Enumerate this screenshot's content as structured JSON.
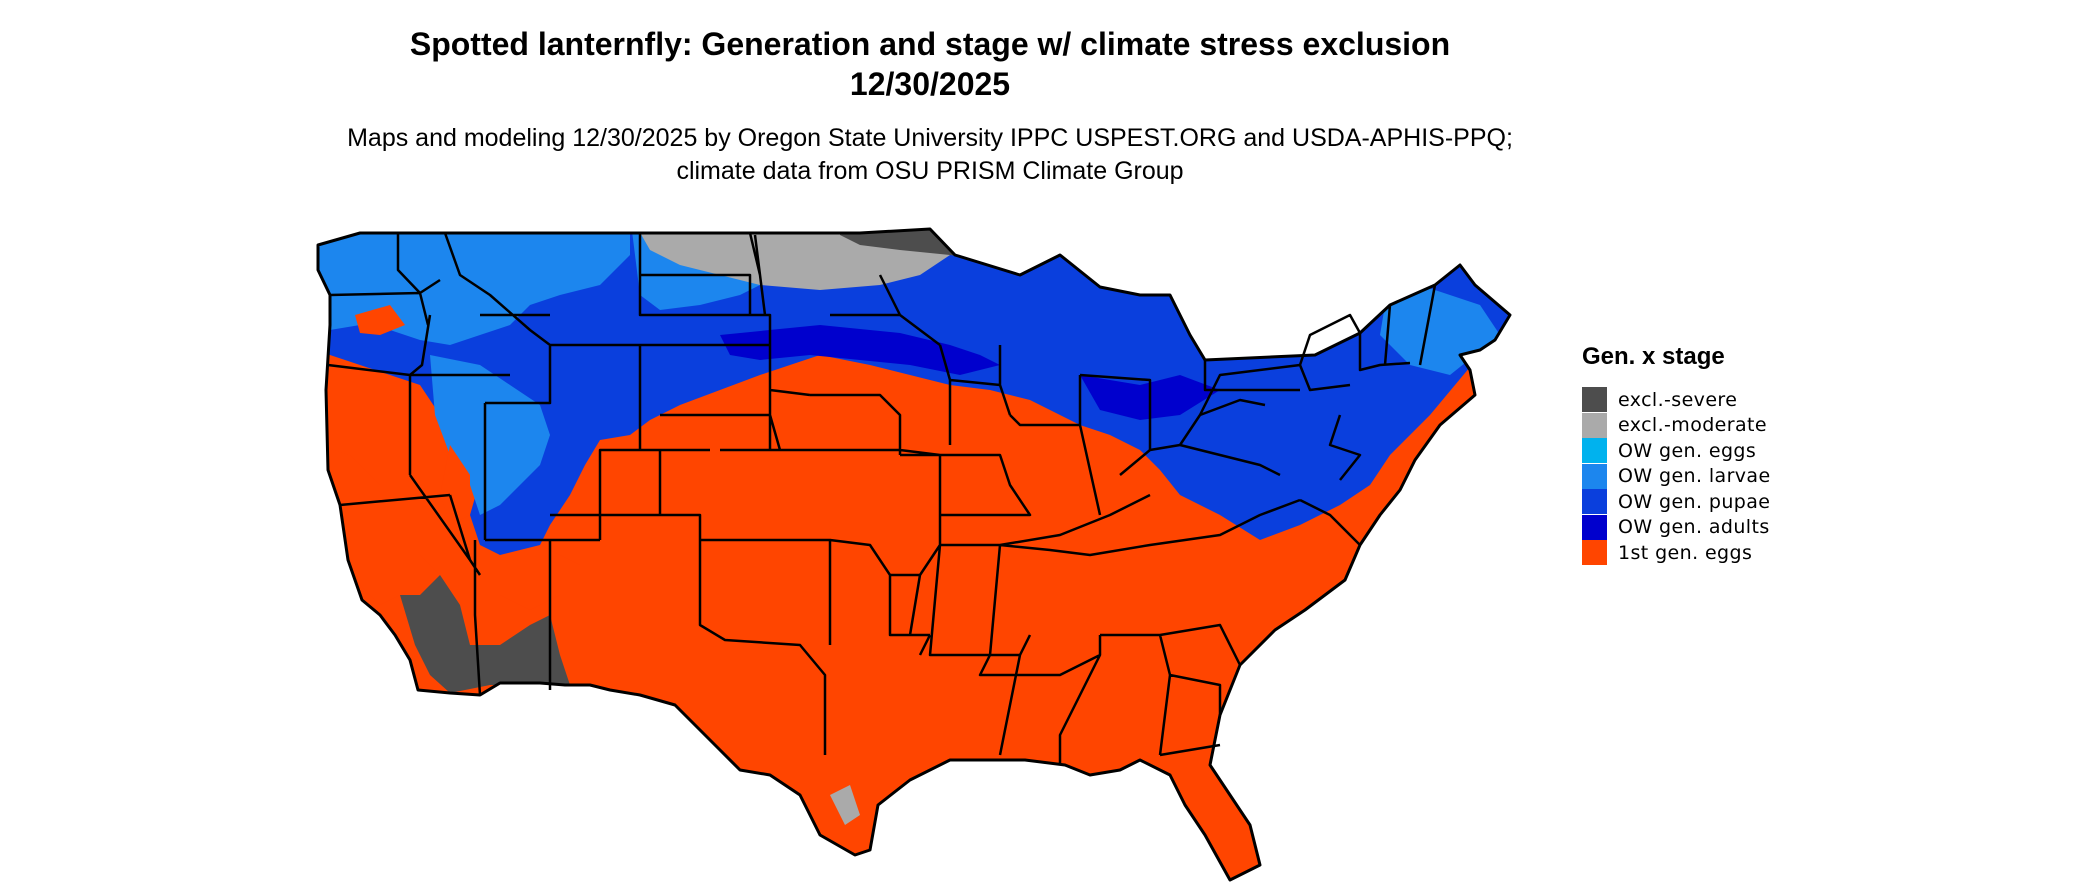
{
  "title": "Spotted lanternfly: Generation and stage w/ climate stress exclusion 12/30/2025",
  "subtitle": "Maps and modeling 12/30/2025 by Oregon State University IPPC USPEST.ORG and USDA-APHIS-PPQ; climate data from OSU PRISM Climate Group",
  "legend": {
    "title": "Gen. x stage",
    "items": [
      {
        "label": "excl.-severe",
        "color": "#4d4d4d"
      },
      {
        "label": "excl.-moderate",
        "color": "#aaaaaa"
      },
      {
        "label": "OW gen. eggs",
        "color": "#00b2ee"
      },
      {
        "label": "OW gen. larvae",
        "color": "#1c86ee"
      },
      {
        "label": "OW gen. pupae",
        "color": "#0a3fdd"
      },
      {
        "label": "OW gen. adults",
        "color": "#0000cd"
      },
      {
        "label": "1st gen. eggs",
        "color": "#ff4500"
      }
    ]
  }
}
